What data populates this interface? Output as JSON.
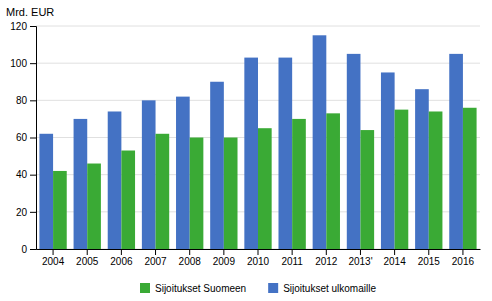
{
  "chart_data": {
    "type": "bar",
    "y_label": "Mrd. EUR",
    "categories": [
      "2004",
      "2005",
      "2006",
      "2007",
      "2008",
      "2009",
      "2010",
      "2011",
      "2012",
      "2013'",
      "2014",
      "2015",
      "2016"
    ],
    "series": [
      {
        "name": "Sijoitukset ulkomaille",
        "color": "#4472c4",
        "values": [
          62,
          70,
          74,
          80,
          82,
          90,
          103,
          103,
          115,
          105,
          95,
          86,
          105
        ]
      },
      {
        "name": "Sijoitukset Suomeen",
        "color": "#3aaa35",
        "values": [
          42,
          46,
          53,
          62,
          60,
          60,
          65,
          70,
          73,
          64,
          75,
          74,
          76
        ]
      }
    ],
    "ylim": [
      0,
      120
    ],
    "yticks": [
      0,
      20,
      40,
      60,
      80,
      100,
      120
    ],
    "grid": true,
    "legend": "bottom"
  }
}
